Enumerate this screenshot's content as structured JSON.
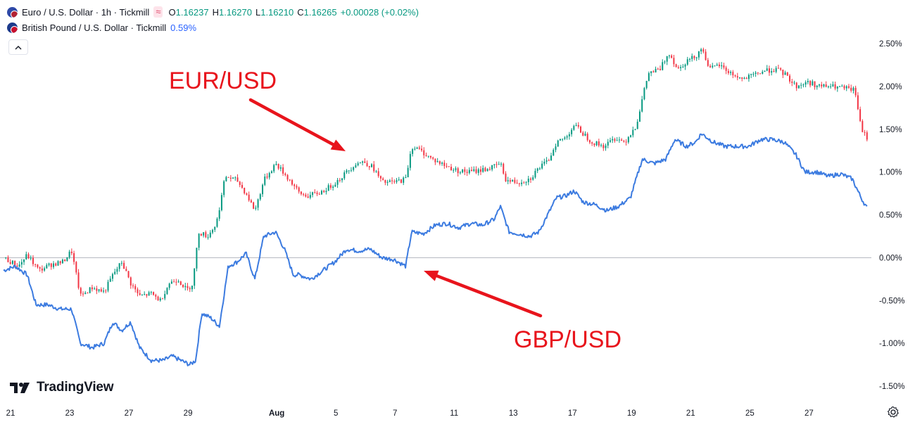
{
  "legend": {
    "eur": {
      "title": "Euro / U.S. Dollar · 1h · Tickmill",
      "badge": "≈",
      "o_label": "O",
      "o_value": "1.16237",
      "h_label": "H",
      "h_value": "1.16270",
      "l_label": "L",
      "l_value": "1.16210",
      "c_label": "C",
      "c_value": "1.16265",
      "change": "+0.00028 (+0.02%)",
      "color": "#089981"
    },
    "gbp": {
      "title": "British Pound / U.S. Dollar · Tickmill",
      "pct": "0.59%",
      "color": "#2962ff"
    }
  },
  "collapse_icon": "chevron-up-icon",
  "annotations": {
    "eur_label": "EUR/USD",
    "gbp_label": "GBP/USD",
    "color": "#e8141c"
  },
  "branding": {
    "name": "TradingView"
  },
  "chart_data": {
    "type": "line",
    "y_unit": "percent change",
    "ylim": [
      -1.5,
      2.5
    ],
    "y_ticks": [
      "2.50%",
      "2.00%",
      "1.50%",
      "1.00%",
      "0.50%",
      "0.00%",
      "-0.50%",
      "-1.00%",
      "-1.50%"
    ],
    "y_tick_values": [
      2.5,
      2.0,
      1.5,
      1.0,
      0.5,
      0.0,
      -0.5,
      -1.0,
      -1.5
    ],
    "x_ticks": [
      {
        "label": "21",
        "day": 0
      },
      {
        "label": "23",
        "day": 2
      },
      {
        "label": "27",
        "day": 4
      },
      {
        "label": "29",
        "day": 6
      },
      {
        "label": "Aug",
        "day": 9
      },
      {
        "label": "5",
        "day": 11
      },
      {
        "label": "7",
        "day": 13
      },
      {
        "label": "11",
        "day": 15
      },
      {
        "label": "13",
        "day": 17
      },
      {
        "label": "17",
        "day": 19
      },
      {
        "label": "19",
        "day": 21
      },
      {
        "label": "21",
        "day": 23
      },
      {
        "label": "25",
        "day": 25
      },
      {
        "label": "27",
        "day": 27
      }
    ],
    "x_range": [
      0,
      29.3
    ],
    "zero_line": true,
    "series": [
      {
        "name": "Euro / U.S. Dollar",
        "style": "candles",
        "up_color": "#089981",
        "down_color": "#f23645",
        "points": [
          [
            0.0,
            0.0
          ],
          [
            0.5,
            -0.1
          ],
          [
            0.8,
            0.03
          ],
          [
            1.2,
            -0.15
          ],
          [
            1.6,
            -0.08
          ],
          [
            2.0,
            -0.05
          ],
          [
            2.3,
            0.08
          ],
          [
            2.6,
            -0.45
          ],
          [
            3.0,
            -0.35
          ],
          [
            3.4,
            -0.4
          ],
          [
            3.7,
            -0.2
          ],
          [
            4.0,
            -0.05
          ],
          [
            4.3,
            -0.3
          ],
          [
            4.6,
            -0.45
          ],
          [
            5.0,
            -0.42
          ],
          [
            5.3,
            -0.5
          ],
          [
            5.6,
            -0.3
          ],
          [
            5.9,
            -0.25
          ],
          [
            6.2,
            -0.38
          ],
          [
            6.4,
            -0.3
          ],
          [
            6.6,
            0.3
          ],
          [
            6.9,
            0.25
          ],
          [
            7.2,
            0.4
          ],
          [
            7.5,
            0.95
          ],
          [
            7.9,
            0.9
          ],
          [
            8.2,
            0.75
          ],
          [
            8.5,
            0.55
          ],
          [
            8.8,
            0.9
          ],
          [
            9.2,
            1.1
          ],
          [
            9.5,
            0.98
          ],
          [
            9.8,
            0.85
          ],
          [
            10.0,
            0.75
          ],
          [
            10.3,
            0.72
          ],
          [
            10.7,
            0.76
          ],
          [
            11.0,
            0.82
          ],
          [
            11.3,
            0.9
          ],
          [
            11.6,
            1.0
          ],
          [
            11.9,
            1.1
          ],
          [
            12.2,
            1.12
          ],
          [
            12.5,
            1.05
          ],
          [
            12.8,
            0.88
          ],
          [
            13.2,
            0.88
          ],
          [
            13.6,
            0.92
          ],
          [
            13.8,
            1.3
          ],
          [
            14.1,
            1.25
          ],
          [
            14.5,
            1.15
          ],
          [
            14.9,
            1.08
          ],
          [
            15.3,
            1.02
          ],
          [
            15.7,
            1.0
          ],
          [
            16.1,
            1.02
          ],
          [
            16.5,
            1.05
          ],
          [
            16.8,
            1.1
          ],
          [
            17.0,
            0.9
          ],
          [
            17.4,
            0.88
          ],
          [
            17.8,
            0.92
          ],
          [
            18.1,
            1.05
          ],
          [
            18.4,
            1.12
          ],
          [
            18.7,
            1.35
          ],
          [
            19.0,
            1.4
          ],
          [
            19.3,
            1.55
          ],
          [
            19.6,
            1.45
          ],
          [
            19.9,
            1.35
          ],
          [
            20.3,
            1.3
          ],
          [
            20.7,
            1.4
          ],
          [
            21.0,
            1.35
          ],
          [
            21.4,
            1.55
          ],
          [
            21.8,
            2.15
          ],
          [
            22.2,
            2.2
          ],
          [
            22.5,
            2.4
          ],
          [
            22.8,
            2.2
          ],
          [
            23.1,
            2.3
          ],
          [
            23.4,
            2.35
          ],
          [
            23.6,
            2.45
          ],
          [
            23.9,
            2.2
          ],
          [
            24.2,
            2.25
          ],
          [
            24.6,
            2.15
          ],
          [
            25.0,
            2.08
          ],
          [
            25.3,
            2.12
          ],
          [
            25.7,
            2.18
          ],
          [
            26.1,
            2.2
          ],
          [
            26.4,
            2.15
          ],
          [
            26.8,
            2.0
          ],
          [
            27.2,
            2.05
          ],
          [
            27.6,
            2.0
          ],
          [
            28.0,
            2.0
          ],
          [
            28.4,
            1.98
          ],
          [
            28.8,
            1.95
          ],
          [
            29.0,
            1.5
          ],
          [
            29.2,
            1.4
          ]
        ]
      },
      {
        "name": "British Pound / U.S. Dollar",
        "style": "line",
        "color": "#3c7be0",
        "points": [
          [
            0.0,
            -0.15
          ],
          [
            0.4,
            -0.1
          ],
          [
            0.8,
            -0.2
          ],
          [
            1.1,
            -0.55
          ],
          [
            1.5,
            -0.55
          ],
          [
            1.9,
            -0.6
          ],
          [
            2.3,
            -0.6
          ],
          [
            2.6,
            -1.0
          ],
          [
            3.0,
            -1.05
          ],
          [
            3.4,
            -1.0
          ],
          [
            3.7,
            -0.75
          ],
          [
            4.0,
            -0.85
          ],
          [
            4.3,
            -0.75
          ],
          [
            4.6,
            -1.05
          ],
          [
            5.0,
            -1.2
          ],
          [
            5.4,
            -1.2
          ],
          [
            5.7,
            -1.15
          ],
          [
            6.0,
            -1.2
          ],
          [
            6.3,
            -1.25
          ],
          [
            6.5,
            -1.2
          ],
          [
            6.7,
            -0.65
          ],
          [
            7.0,
            -0.7
          ],
          [
            7.3,
            -0.8
          ],
          [
            7.6,
            -0.1
          ],
          [
            7.9,
            -0.05
          ],
          [
            8.2,
            0.05
          ],
          [
            8.5,
            -0.25
          ],
          [
            8.8,
            0.25
          ],
          [
            9.2,
            0.3
          ],
          [
            9.5,
            0.1
          ],
          [
            9.8,
            -0.2
          ],
          [
            10.0,
            -0.2
          ],
          [
            10.4,
            -0.25
          ],
          [
            10.8,
            -0.15
          ],
          [
            11.2,
            -0.05
          ],
          [
            11.6,
            0.1
          ],
          [
            12.0,
            0.08
          ],
          [
            12.4,
            0.1
          ],
          [
            12.8,
            0.0
          ],
          [
            13.2,
            -0.02
          ],
          [
            13.6,
            -0.1
          ],
          [
            13.8,
            0.3
          ],
          [
            14.2,
            0.28
          ],
          [
            14.6,
            0.38
          ],
          [
            15.0,
            0.4
          ],
          [
            15.4,
            0.35
          ],
          [
            15.8,
            0.4
          ],
          [
            16.2,
            0.38
          ],
          [
            16.6,
            0.45
          ],
          [
            16.8,
            0.6
          ],
          [
            17.1,
            0.3
          ],
          [
            17.4,
            0.28
          ],
          [
            17.8,
            0.25
          ],
          [
            18.1,
            0.3
          ],
          [
            18.4,
            0.5
          ],
          [
            18.7,
            0.7
          ],
          [
            19.0,
            0.72
          ],
          [
            19.3,
            0.78
          ],
          [
            19.6,
            0.65
          ],
          [
            20.0,
            0.62
          ],
          [
            20.4,
            0.55
          ],
          [
            20.8,
            0.6
          ],
          [
            21.2,
            0.7
          ],
          [
            21.6,
            1.15
          ],
          [
            22.0,
            1.1
          ],
          [
            22.4,
            1.15
          ],
          [
            22.7,
            1.38
          ],
          [
            23.1,
            1.3
          ],
          [
            23.4,
            1.35
          ],
          [
            23.6,
            1.45
          ],
          [
            24.0,
            1.35
          ],
          [
            24.4,
            1.3
          ],
          [
            24.8,
            1.3
          ],
          [
            25.2,
            1.3
          ],
          [
            25.6,
            1.38
          ],
          [
            26.0,
            1.38
          ],
          [
            26.4,
            1.35
          ],
          [
            26.8,
            1.2
          ],
          [
            27.1,
            1.0
          ],
          [
            27.5,
            1.0
          ],
          [
            27.9,
            0.95
          ],
          [
            28.3,
            0.98
          ],
          [
            28.7,
            0.92
          ],
          [
            29.0,
            0.7
          ],
          [
            29.2,
            0.58
          ]
        ]
      }
    ]
  }
}
